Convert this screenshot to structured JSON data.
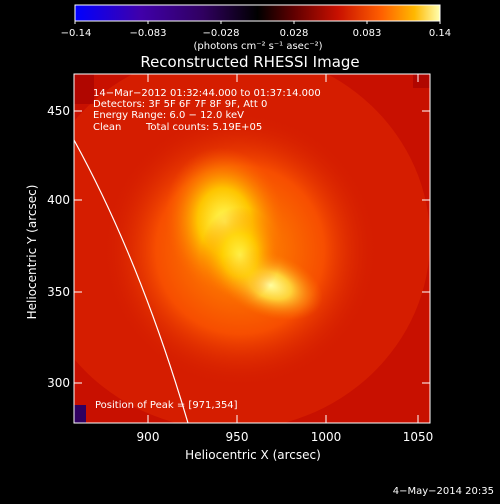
{
  "colorbar": {
    "tick_labels": [
      "−0.14",
      "−0.083",
      "−0.028",
      "0.028",
      "0.083",
      "0.14"
    ],
    "units": "(photons cm⁻² s⁻¹ asec⁻²)",
    "range": [
      -0.14,
      0.14
    ],
    "colors": [
      "#0000ff",
      "#4000aa",
      "#300060",
      "#000000",
      "#500000",
      "#c00000",
      "#ff5000",
      "#ffb000",
      "#ffffa0"
    ]
  },
  "plot": {
    "title": "Reconstructed RHESSI Image",
    "time_range": "14−Mar−2012 01:32:44.000 to 01:37:14.000",
    "detectors": "Detectors: 3F 5F 6F 7F 8F 9F, Att 0",
    "energy_range": "Energy Range: 6.0 − 12.0 keV",
    "clean_label": "Clean",
    "total_counts": "Total counts: 5.19E+05",
    "peak_label": "Position of Peak = [971,354]",
    "xlabel": "Heliocentric X (arcsec)",
    "ylabel": "Heliocentric Y (arcsec)",
    "x_ticks": [
      "900",
      "950",
      "1000",
      "1050"
    ],
    "y_ticks": [
      "300",
      "350",
      "400",
      "450"
    ],
    "x_range": [
      863,
      1052
    ],
    "y_range": [
      273,
      466
    ],
    "peak_position": [
      971,
      354
    ]
  },
  "footer": {
    "date": "4−May−2014 20:35"
  }
}
